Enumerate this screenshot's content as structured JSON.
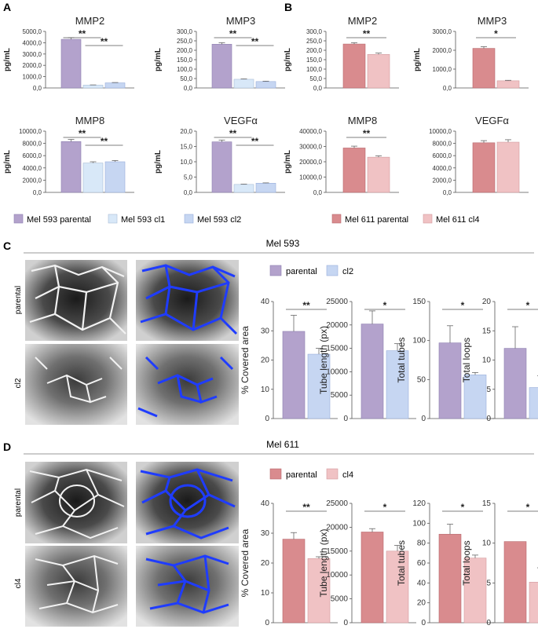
{
  "panels": {
    "A": "A",
    "B": "B",
    "C": "C",
    "D": "D"
  },
  "colors": {
    "mel593_parental": "#b3a2cc",
    "mel593_cl1": "#d8e8f8",
    "mel593_cl2": "#c6d6f2",
    "mel611_parental": "#d98b8e",
    "mel611_cl4": "#f0c2c4",
    "overlay_blue": "#1f3cff",
    "axis": "#555555"
  },
  "legends": {
    "A": [
      "Mel 593 parental",
      "Mel 593 cl1",
      "Mel 593 cl2"
    ],
    "B": [
      "Mel 611 parental",
      "Mel 611 cl4"
    ],
    "C": [
      "parental",
      "cl2"
    ],
    "D": [
      "parental",
      "cl4"
    ]
  },
  "sections": {
    "C": "Mel 593",
    "D": "Mel 611"
  },
  "image_labels": {
    "C": [
      "parental",
      "cl2"
    ],
    "D": [
      "parental",
      "cl4"
    ]
  },
  "chart_data": [
    {
      "id": "A-MMP2",
      "panel": "A",
      "type": "bar",
      "title": "MMP2",
      "ylabel": "pg/mL",
      "ylim": [
        0,
        5000
      ],
      "yticks": [
        "0,0",
        "1000,0",
        "2000,0",
        "3000,0",
        "4000,0",
        "5000,0"
      ],
      "categories": [
        "Mel 593 parental",
        "Mel 593 cl1",
        "Mel 593 cl2"
      ],
      "values": [
        4300,
        250,
        450
      ],
      "errors": [
        150,
        20,
        30
      ],
      "sig": [
        {
          "from": 0,
          "to": 1,
          "label": "**"
        },
        {
          "from": 1,
          "to": 2,
          "label": "**"
        }
      ]
    },
    {
      "id": "A-MMP3",
      "panel": "A",
      "type": "bar",
      "title": "MMP3",
      "ylabel": "pg/mL",
      "ylim": [
        0,
        300
      ],
      "yticks": [
        "0,0",
        "50,0",
        "100,0",
        "150,0",
        "200,0",
        "250,0",
        "300,0"
      ],
      "categories": [
        "Mel 593 parental",
        "Mel 593 cl1",
        "Mel 593 cl2"
      ],
      "values": [
        232,
        46,
        34
      ],
      "errors": [
        8,
        2,
        2
      ],
      "sig": [
        {
          "from": 0,
          "to": 1,
          "label": "**"
        },
        {
          "from": 1,
          "to": 2,
          "label": "**"
        }
      ]
    },
    {
      "id": "A-MMP8",
      "panel": "A",
      "type": "bar",
      "title": "MMP8",
      "ylabel": "pg/mL",
      "ylim": [
        0,
        10000
      ],
      "yticks": [
        "0,0",
        "2000,0",
        "4000,0",
        "6000,0",
        "8000,0",
        "10000,0"
      ],
      "categories": [
        "Mel 593 parental",
        "Mel 593 cl1",
        "Mel 593 cl2"
      ],
      "values": [
        8300,
        4800,
        5000
      ],
      "errors": [
        350,
        200,
        200
      ],
      "sig": [
        {
          "from": 0,
          "to": 1,
          "label": "**"
        },
        {
          "from": 1,
          "to": 2,
          "label": "**"
        }
      ]
    },
    {
      "id": "A-VEGF",
      "panel": "A",
      "type": "bar",
      "title": "VEGFα",
      "ylabel": "pg/mL",
      "ylim": [
        0,
        20
      ],
      "yticks": [
        "0,0",
        "5,0",
        "10,0",
        "15,0",
        "20,0"
      ],
      "categories": [
        "Mel 593 parental",
        "Mel 593 cl1",
        "Mel 593 cl2"
      ],
      "values": [
        16.5,
        2.6,
        3.0
      ],
      "errors": [
        0.6,
        0.1,
        0.1
      ],
      "sig": [
        {
          "from": 0,
          "to": 1,
          "label": "**"
        },
        {
          "from": 1,
          "to": 2,
          "label": "**"
        }
      ]
    },
    {
      "id": "B-MMP2",
      "panel": "B",
      "type": "bar",
      "title": "MMP2",
      "ylabel": "pg/mL",
      "ylim": [
        0,
        300
      ],
      "yticks": [
        "0,0",
        "50,0",
        "100,0",
        "150,0",
        "200,0",
        "250,0",
        "300,0"
      ],
      "categories": [
        "Mel 611 parental",
        "Mel 611 cl4"
      ],
      "values": [
        233,
        178
      ],
      "errors": [
        7,
        7
      ],
      "sig": [
        {
          "from": 0,
          "to": 1,
          "label": "**"
        }
      ]
    },
    {
      "id": "B-MMP3",
      "panel": "B",
      "type": "bar",
      "title": "MMP3",
      "ylabel": "pg/mL",
      "ylim": [
        0,
        3000
      ],
      "yticks": [
        "0,0",
        "1000,0",
        "2000,0",
        "3000,0"
      ],
      "categories": [
        "Mel 611 parental",
        "Mel 611 cl4"
      ],
      "values": [
        2100,
        380
      ],
      "errors": [
        90,
        25
      ],
      "sig": [
        {
          "from": 0,
          "to": 1,
          "label": "*"
        }
      ]
    },
    {
      "id": "B-MMP8",
      "panel": "B",
      "type": "bar",
      "title": "MMP8",
      "ylabel": "pg/mL",
      "ylim": [
        0,
        40000
      ],
      "yticks": [
        "0,0",
        "10000,0",
        "20000,0",
        "30000,0",
        "40000,0"
      ],
      "categories": [
        "Mel 611 parental",
        "Mel 611 cl4"
      ],
      "values": [
        29000,
        23000
      ],
      "errors": [
        1200,
        900
      ],
      "sig": [
        {
          "from": 0,
          "to": 1,
          "label": "**"
        }
      ]
    },
    {
      "id": "B-VEGF",
      "panel": "B",
      "type": "bar",
      "title": "VEGFα",
      "ylabel": "",
      "ylim": [
        0,
        10000
      ],
      "yticks": [
        "0,0",
        "2000,0",
        "4000,0",
        "6000,0",
        "8000,0",
        "10000,0"
      ],
      "categories": [
        "Mel 611 parental",
        "Mel 611 cl4"
      ],
      "values": [
        8100,
        8200
      ],
      "errors": [
        350,
        400
      ],
      "sig": []
    },
    {
      "id": "C-area",
      "panel": "C",
      "type": "bar",
      "title": "",
      "ylabel": "% Covered area",
      "ylim": [
        0,
        40
      ],
      "yticks": [
        "0",
        "10",
        "20",
        "30",
        "40"
      ],
      "categories": [
        "parental",
        "cl2"
      ],
      "values": [
        29.8,
        22
      ],
      "errors": [
        5.5,
        2
      ],
      "sig": [
        {
          "from": 0,
          "to": 1,
          "label": "**"
        }
      ]
    },
    {
      "id": "C-length",
      "panel": "C",
      "type": "bar",
      "title": "",
      "ylabel": "Tube length (px)",
      "ylim": [
        0,
        25000
      ],
      "yticks": [
        "0",
        "5000",
        "10000",
        "15000",
        "20000",
        "25000"
      ],
      "categories": [
        "parental",
        "cl2"
      ],
      "values": [
        20200,
        14500
      ],
      "errors": [
        2800,
        1500
      ],
      "sig": [
        {
          "from": 0,
          "to": 1,
          "label": "*"
        }
      ]
    },
    {
      "id": "C-tubes",
      "panel": "C",
      "type": "bar",
      "title": "",
      "ylabel": "Total tubes",
      "ylim": [
        0,
        150
      ],
      "yticks": [
        "0",
        "50",
        "100",
        "150"
      ],
      "categories": [
        "parental",
        "cl2"
      ],
      "values": [
        97,
        56
      ],
      "errors": [
        22,
        3
      ],
      "sig": [
        {
          "from": 0,
          "to": 1,
          "label": "*"
        }
      ]
    },
    {
      "id": "C-loops",
      "panel": "C",
      "type": "bar",
      "title": "",
      "ylabel": "Total loops",
      "ylim": [
        0,
        20
      ],
      "yticks": [
        "0",
        "5",
        "10",
        "15",
        "20"
      ],
      "categories": [
        "parental",
        "cl2"
      ],
      "values": [
        12,
        5.3
      ],
      "errors": [
        3.7,
        2
      ],
      "sig": [
        {
          "from": 0,
          "to": 1,
          "label": "*"
        }
      ]
    },
    {
      "id": "D-area",
      "panel": "D",
      "type": "bar",
      "title": "",
      "ylabel": "% Covered area",
      "ylim": [
        0,
        40
      ],
      "yticks": [
        "0",
        "10",
        "20",
        "30",
        "40"
      ],
      "categories": [
        "parental",
        "cl4"
      ],
      "values": [
        28,
        21.5
      ],
      "errors": [
        2.2,
        0.6
      ],
      "sig": [
        {
          "from": 0,
          "to": 1,
          "label": "**"
        }
      ]
    },
    {
      "id": "D-length",
      "panel": "D",
      "type": "bar",
      "title": "",
      "ylabel": "Tube length (px)",
      "ylim": [
        0,
        25000
      ],
      "yticks": [
        "0",
        "5000",
        "10000",
        "15000",
        "20000",
        "25000"
      ],
      "categories": [
        "parental",
        "cl4"
      ],
      "values": [
        19000,
        15000
      ],
      "errors": [
        700,
        1200
      ],
      "sig": [
        {
          "from": 0,
          "to": 1,
          "label": "*"
        }
      ]
    },
    {
      "id": "D-tubes",
      "panel": "D",
      "type": "bar",
      "title": "",
      "ylabel": "Total tubes",
      "ylim": [
        0,
        120
      ],
      "yticks": [
        "0",
        "20",
        "40",
        "60",
        "80",
        "100",
        "120"
      ],
      "categories": [
        "parental",
        "cl4"
      ],
      "values": [
        89,
        65
      ],
      "errors": [
        10,
        3
      ],
      "sig": [
        {
          "from": 0,
          "to": 1,
          "label": "*"
        }
      ]
    },
    {
      "id": "D-loops",
      "panel": "D",
      "type": "bar",
      "title": "",
      "ylabel": "Total loops",
      "ylim": [
        0,
        15
      ],
      "yticks": [
        "0",
        "5",
        "10",
        "15"
      ],
      "categories": [
        "parental",
        "cl4"
      ],
      "values": [
        10.2,
        5.1
      ],
      "errors": [
        0,
        1.8
      ],
      "sig": [
        {
          "from": 0,
          "to": 1,
          "label": "*"
        }
      ]
    }
  ]
}
